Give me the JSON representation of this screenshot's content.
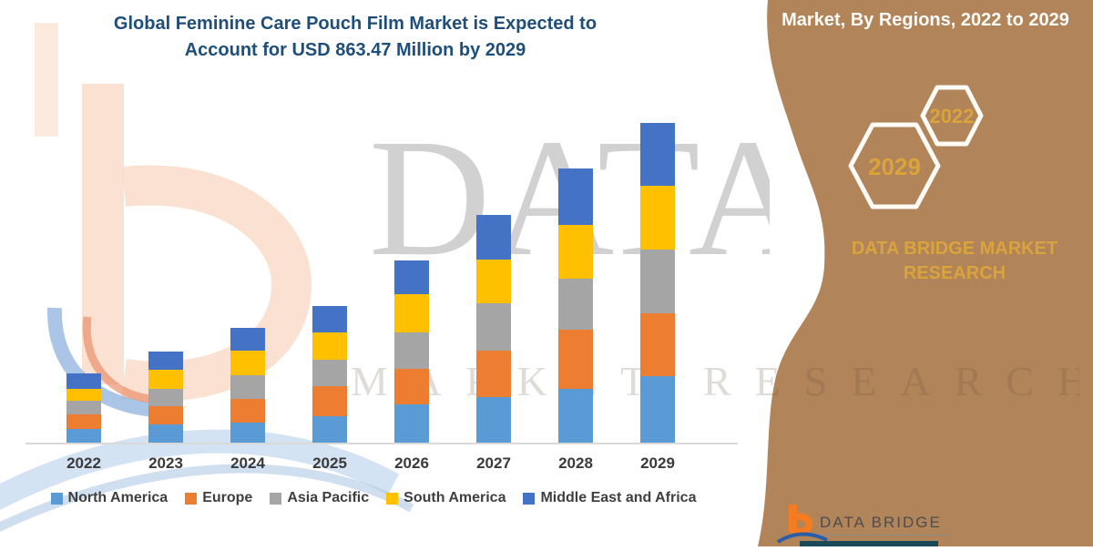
{
  "title": {
    "line1": "Global Feminine Care Pouch Film Market is Expected to",
    "line2": "Account for USD 863.47 Million by 2029"
  },
  "sidebar": {
    "header": "Market, By Regions, 2022 to 2029",
    "hexagons": [
      {
        "label": "2029"
      },
      {
        "label": "2022"
      }
    ],
    "brand_line1": "DATA BRIDGE MARKET",
    "brand_line2": "RESEARCH",
    "colors": {
      "background": "#B28459",
      "accent_gold": "#D9A33D"
    }
  },
  "watermark": {
    "big_text": "DATA B",
    "sub_text": "MARKET RESEARCH"
  },
  "footer_logo": {
    "brand": "DATA BRIDGE"
  },
  "chart_data": {
    "type": "bar",
    "stacked": true,
    "title": "Global Feminine Care Pouch Film Market, By Regions, 2022 to 2029",
    "unit": "USD Million",
    "xlabel": "",
    "ylabel": "",
    "ylim": [
      0,
      900
    ],
    "grid": false,
    "y_axis_hidden": true,
    "legend_position": "bottom",
    "categories": [
      "2022",
      "2023",
      "2024",
      "2025",
      "2026",
      "2027",
      "2028",
      "2029"
    ],
    "series": [
      {
        "name": "North America",
        "color": "#5B9BD5",
        "values": [
          38,
          48,
          53,
          72,
          103,
          123,
          146,
          180
        ]
      },
      {
        "name": "Europe",
        "color": "#ED7D31",
        "values": [
          39,
          51,
          64,
          80,
          97,
          126,
          160,
          170
        ]
      },
      {
        "name": "Asia Pacific",
        "color": "#A5A5A5",
        "values": [
          37,
          46,
          66,
          71,
          98,
          127,
          137,
          172
        ]
      },
      {
        "name": "South America",
        "color": "#FFC000",
        "values": [
          31,
          51,
          66,
          74,
          103,
          119,
          144,
          172
        ]
      },
      {
        "name": "Middle East and Africa",
        "color": "#4472C4",
        "values": [
          43,
          51,
          62,
          72,
          92,
          121,
          153,
          169.47
        ]
      }
    ],
    "totals": [
      188,
      247,
      311,
      369,
      493,
      616,
      740,
      863.47
    ],
    "highlight_total_2029": "USD 863.47 Million"
  }
}
